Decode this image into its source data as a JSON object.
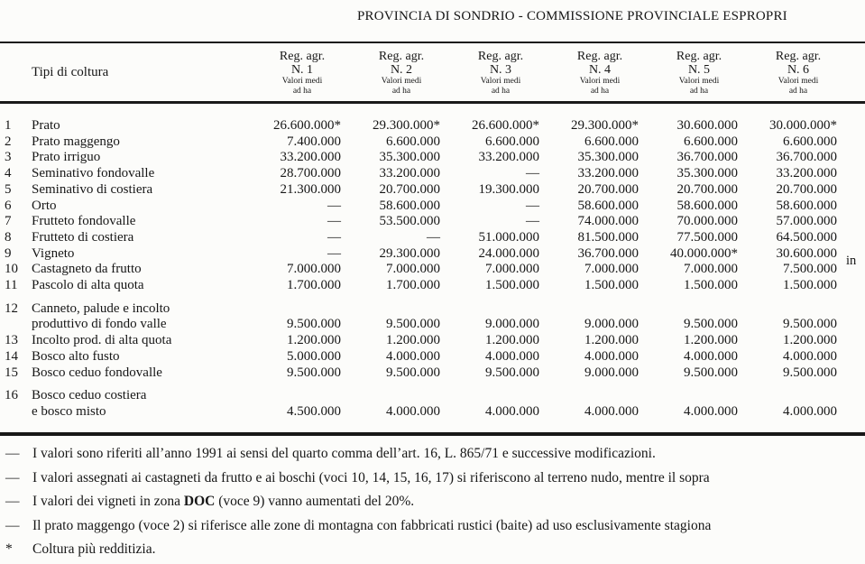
{
  "title": "PROVINCIA DI SONDRIO - COMMISSIONE PROVINCIALE ESPROPRI",
  "table": {
    "row_header": "Tipi di coltura",
    "columns": [
      {
        "region": "Reg. agr.",
        "number": "N. 1",
        "sub1": "Valori medi",
        "sub2": "ad ha"
      },
      {
        "region": "Reg. agr.",
        "number": "N. 2",
        "sub1": "Valori medi",
        "sub2": "ad ha"
      },
      {
        "region": "Reg. agr.",
        "number": "N. 3",
        "sub1": "Valori medi",
        "sub2": "ad ha"
      },
      {
        "region": "Reg. agr.",
        "number": "N. 4",
        "sub1": "Valori medi",
        "sub2": "ad ha"
      },
      {
        "region": "Reg. agr.",
        "number": "N. 5",
        "sub1": "Valori medi",
        "sub2": "ad ha"
      },
      {
        "region": "Reg. agr.",
        "number": "N. 6",
        "sub1": "Valori medi",
        "sub2": "ad ha"
      }
    ],
    "rows": [
      {
        "num": "1",
        "label": "Prato",
        "values": [
          "26.600.000*",
          "29.300.000*",
          "26.600.000*",
          "29.300.000*",
          "30.600.000",
          "30.000.000*"
        ]
      },
      {
        "num": "2",
        "label": "Prato maggengo",
        "values": [
          "7.400.000",
          "6.600.000",
          "6.600.000",
          "6.600.000",
          "6.600.000",
          "6.600.000"
        ]
      },
      {
        "num": "3",
        "label": "Prato irriguo",
        "values": [
          "33.200.000",
          "35.300.000",
          "33.200.000",
          "35.300.000",
          "36.700.000",
          "36.700.000"
        ]
      },
      {
        "num": "4",
        "label": "Seminativo fondovalle",
        "values": [
          "28.700.000",
          "33.200.000",
          "—",
          "33.200.000",
          "35.300.000",
          "33.200.000"
        ]
      },
      {
        "num": "5",
        "label": "Seminativo di costiera",
        "values": [
          "21.300.000",
          "20.700.000",
          "19.300.000",
          "20.700.000",
          "20.700.000",
          "20.700.000"
        ]
      },
      {
        "num": "6",
        "label": "Orto",
        "values": [
          "—",
          "58.600.000",
          "—",
          "58.600.000",
          "58.600.000",
          "58.600.000"
        ]
      },
      {
        "num": "7",
        "label": "Frutteto fondovalle",
        "values": [
          "—",
          "53.500.000",
          "—",
          "74.000.000",
          "70.000.000",
          "57.000.000"
        ]
      },
      {
        "num": "8",
        "label": "Frutteto di costiera",
        "values": [
          "—",
          "—",
          "51.000.000",
          "81.500.000",
          "77.500.000",
          "64.500.000"
        ]
      },
      {
        "num": "9",
        "label": "Vigneto",
        "values": [
          "—",
          "29.300.000",
          "24.000.000",
          "36.700.000",
          "40.000.000*",
          "30.600.000"
        ]
      },
      {
        "num": "10",
        "label": "Castagneto da frutto",
        "values": [
          "7.000.000",
          "7.000.000",
          "7.000.000",
          "7.000.000",
          "7.000.000",
          "7.500.000"
        ]
      },
      {
        "num": "11",
        "label": "Pascolo di alta quota",
        "values": [
          "1.700.000",
          "1.700.000",
          "1.500.000",
          "1.500.000",
          "1.500.000",
          "1.500.000"
        ]
      },
      {
        "num": "12",
        "label": "Canneto, palude e incolto",
        "label2": "produttivo di fondo valle",
        "values": [
          "9.500.000",
          "9.500.000",
          "9.000.000",
          "9.000.000",
          "9.500.000",
          "9.500.000"
        ]
      },
      {
        "num": "13",
        "label": "Incolto prod. di alta quota",
        "values": [
          "1.200.000",
          "1.200.000",
          "1.200.000",
          "1.200.000",
          "1.200.000",
          "1.200.000"
        ]
      },
      {
        "num": "14",
        "label": "Bosco alto fusto",
        "values": [
          "5.000.000",
          "4.000.000",
          "4.000.000",
          "4.000.000",
          "4.000.000",
          "4.000.000"
        ]
      },
      {
        "num": "15",
        "label": "Bosco ceduo fondovalle",
        "values": [
          "9.500.000",
          "9.500.000",
          "9.500.000",
          "9.000.000",
          "9.500.000",
          "9.500.000"
        ]
      },
      {
        "num": "16",
        "label": "Bosco ceduo costiera",
        "label2": "e bosco misto",
        "values": [
          "4.500.000",
          "4.000.000",
          "4.000.000",
          "4.000.000",
          "4.000.000",
          "4.000.000"
        ]
      }
    ]
  },
  "margin_note": "in",
  "footnotes": [
    {
      "marker": "—",
      "segments": [
        {
          "text": "I valori sono riferiti all’anno 1991 ai sensi del quarto comma dell’art. 16, L. 865/71 e successive modificazioni."
        }
      ]
    },
    {
      "marker": "—",
      "segments": [
        {
          "text": "I valori assegnati ai castagneti da frutto e ai boschi (voci 10, 14, 15, 16, 17) si riferiscono al terreno nudo, mentre il sopra"
        }
      ]
    },
    {
      "marker": "—",
      "segments": [
        {
          "text": "I valori dei vigneti in zona "
        },
        {
          "text": "DOC",
          "bold": true
        },
        {
          "text": " (voce 9) vanno aumentati del 20%."
        }
      ]
    },
    {
      "marker": "—",
      "segments": [
        {
          "text": "Il prato maggengo (voce 2) si riferisce alle zone di montagna con fabbricati rustici (baite) ad uso esclusivamente stagiona"
        }
      ]
    },
    {
      "marker": "*",
      "segments": [
        {
          "text": "Coltura più redditizia."
        }
      ]
    }
  ]
}
